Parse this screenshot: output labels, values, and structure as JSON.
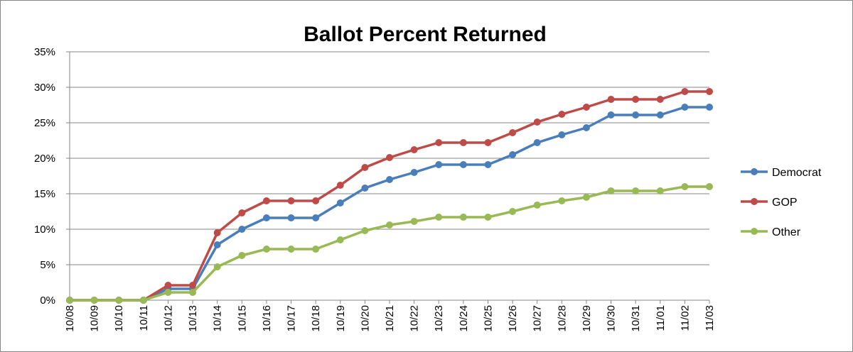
{
  "chart_data": {
    "type": "line",
    "title": "Ballot Percent Returned",
    "xlabel": "",
    "ylabel": "",
    "ylim": [
      0,
      35
    ],
    "y_ticks": [
      "0%",
      "5%",
      "10%",
      "15%",
      "20%",
      "25%",
      "30%",
      "35%"
    ],
    "y_tick_values": [
      0,
      5,
      10,
      15,
      20,
      25,
      30,
      35
    ],
    "grid": "horizontal",
    "legend_position": "right",
    "categories": [
      "10/08",
      "10/09",
      "10/10",
      "10/11",
      "10/12",
      "10/13",
      "10/14",
      "10/15",
      "10/16",
      "10/17",
      "10/18",
      "10/19",
      "10/20",
      "10/21",
      "10/22",
      "10/23",
      "10/24",
      "10/25",
      "10/26",
      "10/27",
      "10/28",
      "10/29",
      "10/30",
      "10/31",
      "11/01",
      "11/02",
      "11/03"
    ],
    "series": [
      {
        "name": "Democrat",
        "color": "#4a7ebb",
        "values": [
          0,
          0,
          0,
          0,
          1.6,
          1.6,
          7.8,
          10.0,
          11.6,
          11.6,
          11.6,
          13.7,
          15.8,
          17.0,
          18.0,
          19.1,
          19.1,
          19.1,
          20.5,
          22.2,
          23.3,
          24.3,
          26.1,
          26.1,
          26.1,
          27.2,
          27.2
        ]
      },
      {
        "name": "GOP",
        "color": "#be4b48",
        "values": [
          0,
          0,
          0,
          0,
          2.1,
          2.1,
          9.5,
          12.3,
          14.0,
          14.0,
          14.0,
          16.2,
          18.7,
          20.1,
          21.2,
          22.2,
          22.2,
          22.2,
          23.6,
          25.1,
          26.2,
          27.2,
          28.3,
          28.3,
          28.3,
          29.4,
          29.4
        ]
      },
      {
        "name": "Other",
        "color": "#98b954",
        "values": [
          0,
          0,
          0,
          0,
          1.1,
          1.1,
          4.7,
          6.3,
          7.2,
          7.2,
          7.2,
          8.5,
          9.8,
          10.6,
          11.1,
          11.7,
          11.7,
          11.7,
          12.5,
          13.4,
          14.0,
          14.5,
          15.4,
          15.4,
          15.4,
          16.0,
          16.0
        ]
      }
    ]
  }
}
